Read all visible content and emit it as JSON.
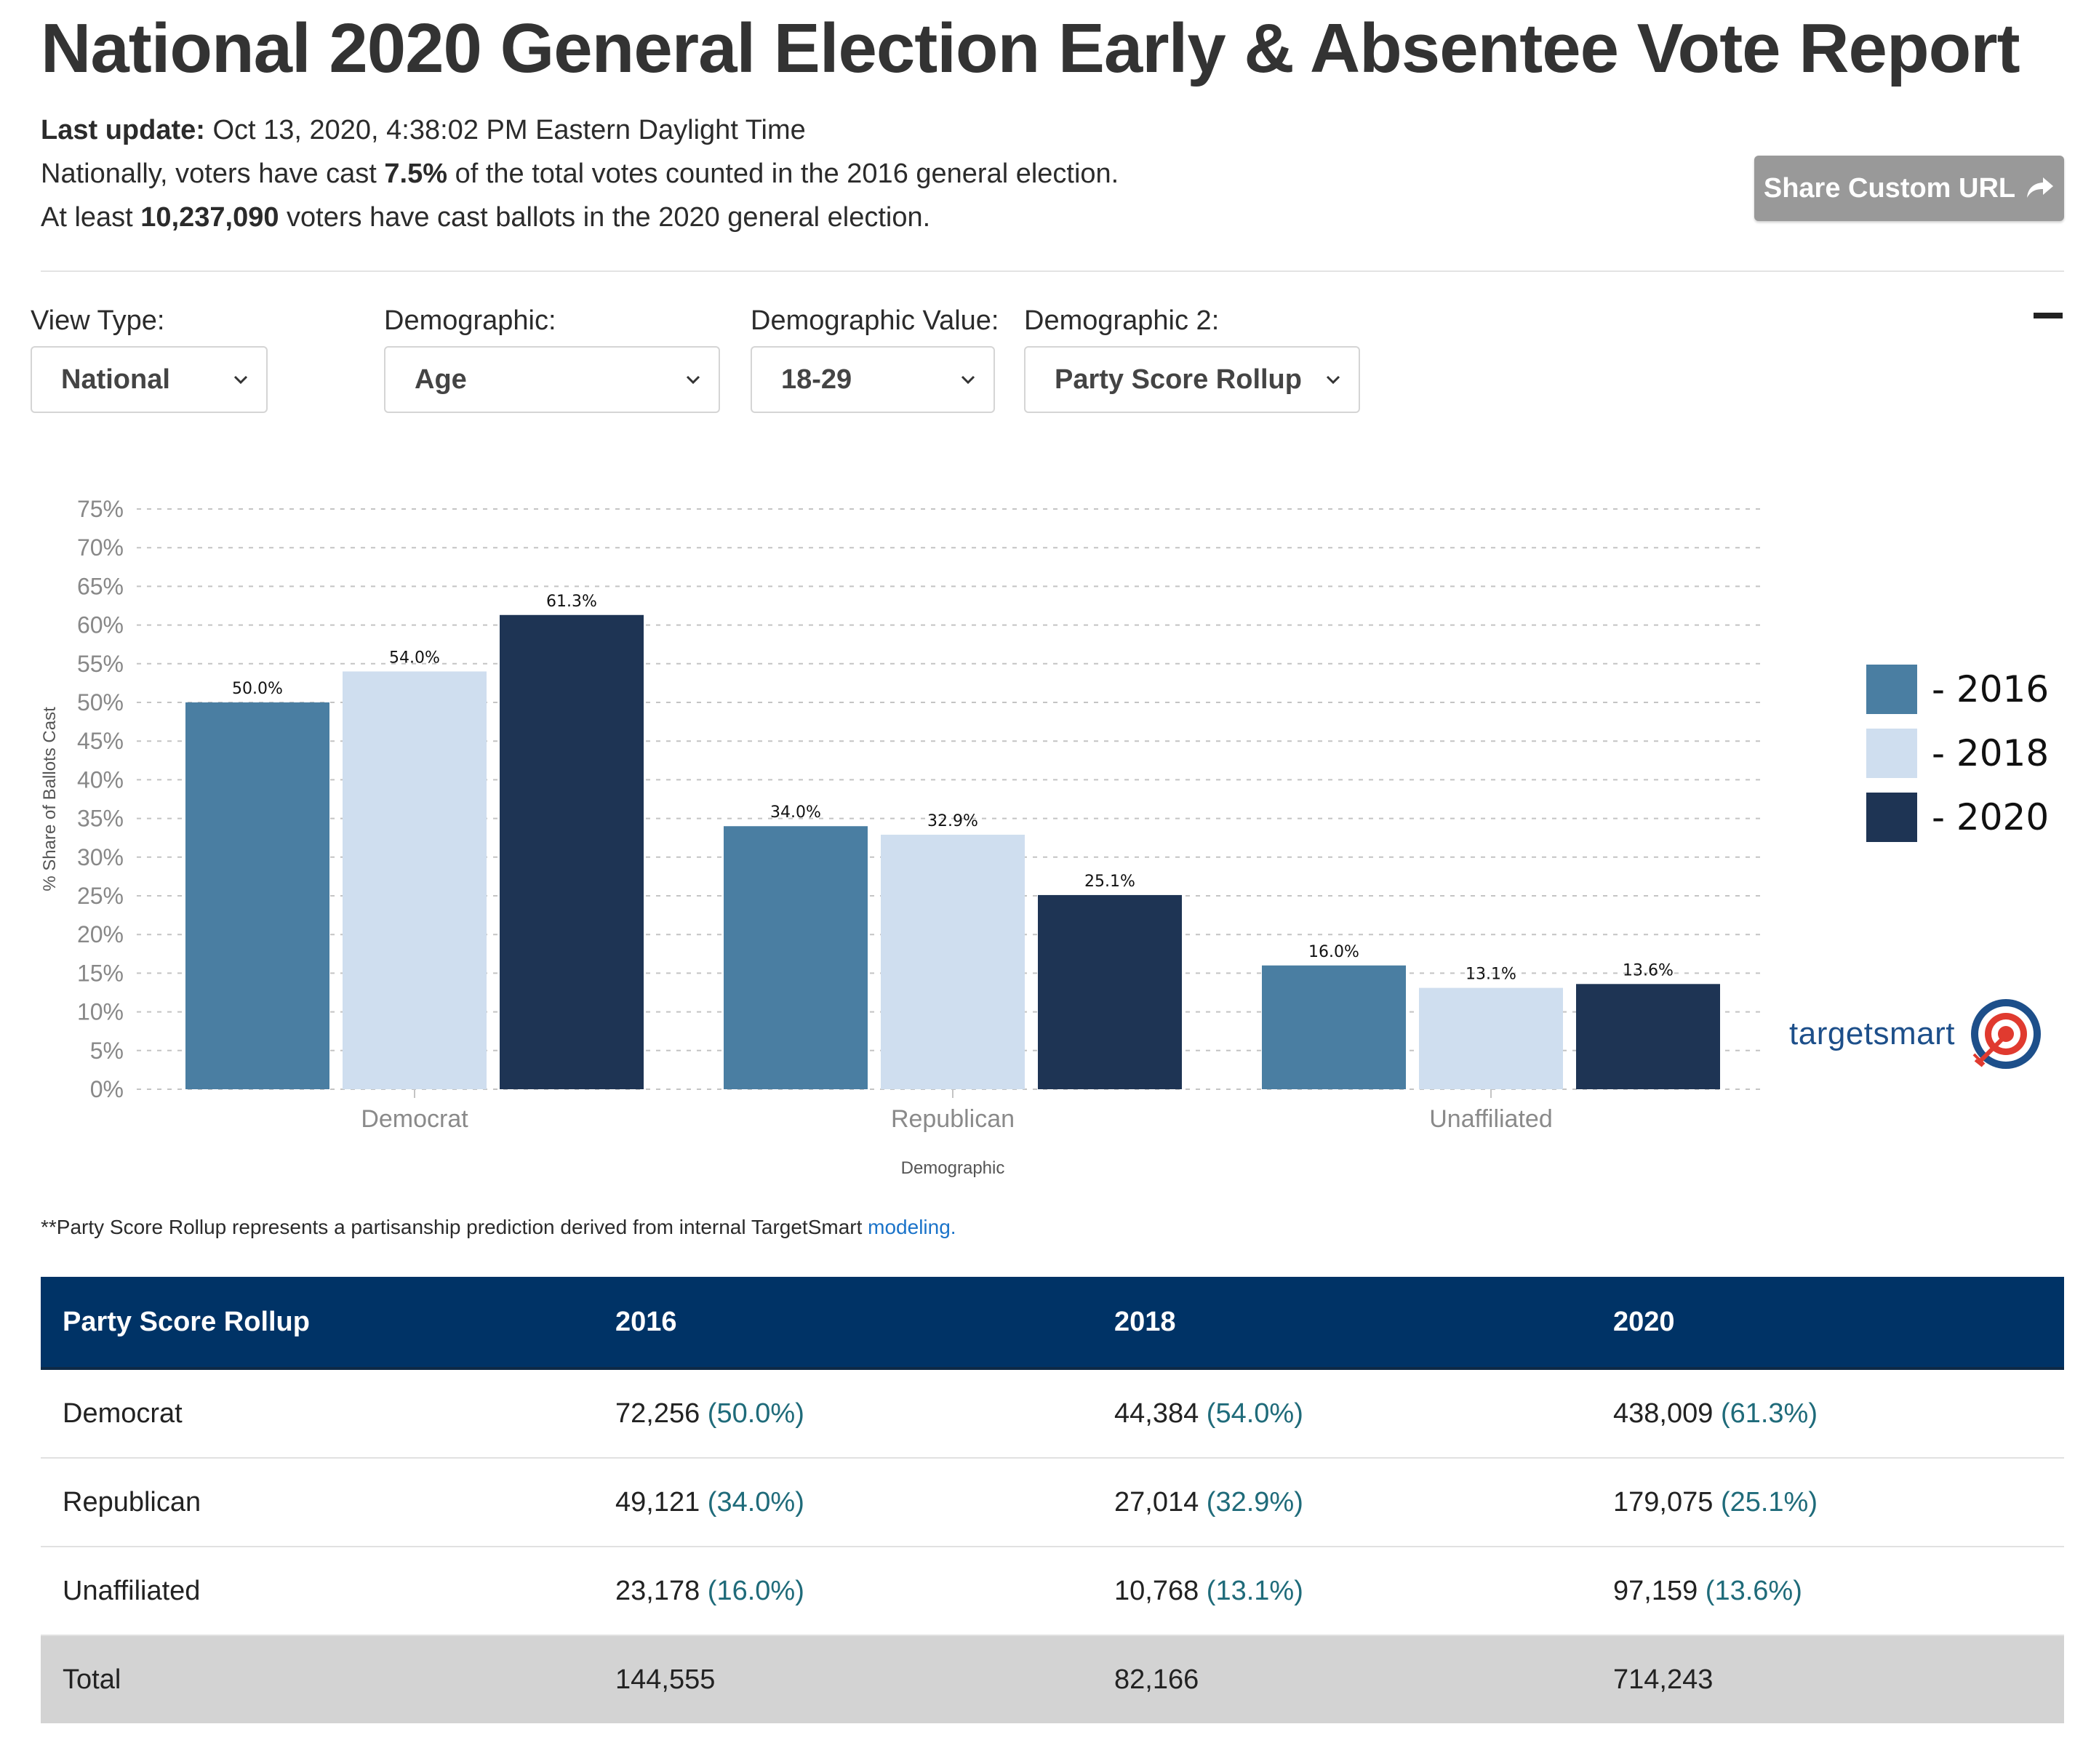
{
  "header": {
    "title": "National 2020 General Election Early & Absentee Vote Report",
    "last_update_label": "Last update:",
    "last_update_value": " Oct 13, 2020, 4:38:02 PM Eastern Daylight Time",
    "line2_prefix": "Nationally, voters have cast ",
    "line2_value": "7.5%",
    "line2_suffix": " of the total votes counted in the 2016 general election.",
    "line3_prefix": "At least ",
    "line3_value": "10,237,090",
    "line3_suffix": " voters have cast ballots in the 2020 general election.",
    "share_label": "Share Custom URL"
  },
  "filters": {
    "view_type": {
      "label": "View Type:",
      "value": "National"
    },
    "demographic": {
      "label": "Demographic:",
      "value": "Age"
    },
    "demographic_value": {
      "label": "Demographic Value:",
      "value": "18-29"
    },
    "demographic_2": {
      "label": "Demographic 2:",
      "value": "Party Score Rollup"
    }
  },
  "chart_data": {
    "type": "bar",
    "categories": [
      "Democrat",
      "Republican",
      "Unaffiliated"
    ],
    "series": [
      {
        "name": "- 2016",
        "color": "#4a7ea2",
        "values": [
          50.0,
          34.0,
          16.0
        ],
        "labels": [
          "50.0%",
          "34.0%",
          "16.0%"
        ]
      },
      {
        "name": "- 2018",
        "color": "#cfdeef",
        "values": [
          54.0,
          32.9,
          13.1
        ],
        "labels": [
          "54.0%",
          "32.9%",
          "13.1%"
        ]
      },
      {
        "name": "- 2020",
        "color": "#1e3454",
        "values": [
          61.3,
          25.1,
          13.6
        ],
        "labels": [
          "61.3%",
          "25.1%",
          "13.6%"
        ]
      }
    ],
    "ylim": [
      0,
      75
    ],
    "yticks": [
      "0%",
      "5%",
      "10%",
      "15%",
      "20%",
      "25%",
      "30%",
      "35%",
      "40%",
      "45%",
      "50%",
      "55%",
      "60%",
      "65%",
      "70%",
      "75%"
    ],
    "ylabel": "% Share of Ballots Cast",
    "xlabel": "Demographic",
    "grid": true,
    "legend": "right"
  },
  "logo": {
    "text": "targetsmart"
  },
  "footnote": {
    "text": "**Party Score Rollup represents a partisanship prediction derived from internal TargetSmart ",
    "link": "modeling."
  },
  "table": {
    "headers": [
      "Party Score Rollup",
      "2016",
      "2018",
      "2020"
    ],
    "rows": [
      {
        "label": "Democrat",
        "cells": [
          {
            "n": "72,256",
            "p": "(50.0%)"
          },
          {
            "n": "44,384",
            "p": "(54.0%)"
          },
          {
            "n": "438,009",
            "p": "(61.3%)"
          }
        ]
      },
      {
        "label": "Republican",
        "cells": [
          {
            "n": "49,121",
            "p": "(34.0%)"
          },
          {
            "n": "27,014",
            "p": "(32.9%)"
          },
          {
            "n": "179,075",
            "p": "(25.1%)"
          }
        ]
      },
      {
        "label": "Unaffiliated",
        "cells": [
          {
            "n": "23,178",
            "p": "(16.0%)"
          },
          {
            "n": "10,768",
            "p": "(13.1%)"
          },
          {
            "n": "97,159",
            "p": "(13.6%)"
          }
        ]
      }
    ],
    "total": {
      "label": "Total",
      "cells": [
        "144,555",
        "82,166",
        "714,243"
      ]
    }
  }
}
